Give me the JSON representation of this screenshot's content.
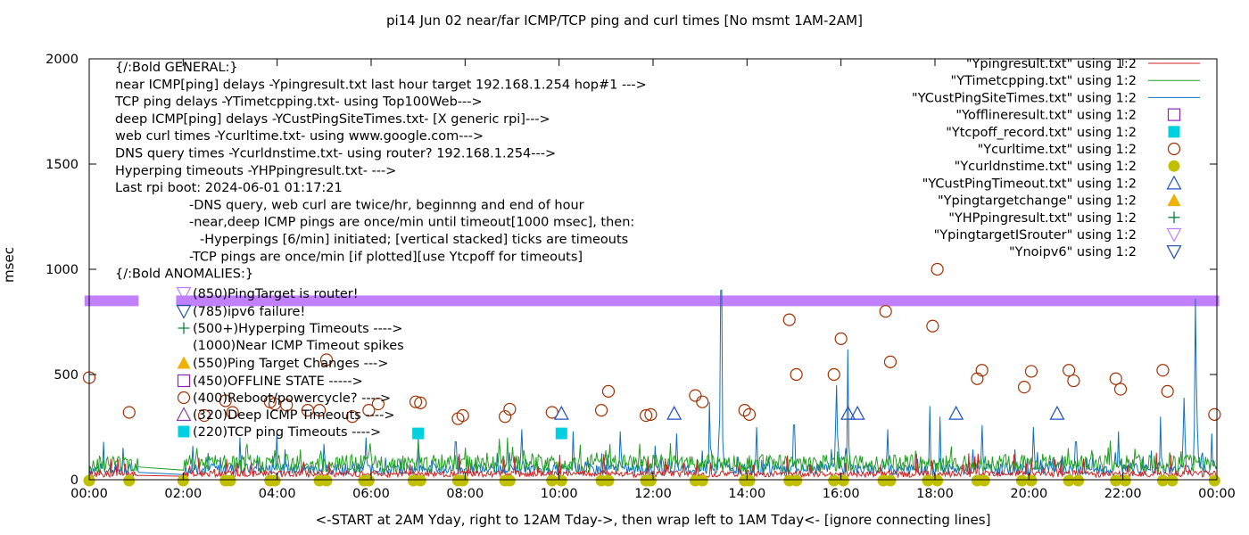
{
  "chart_data": {
    "type": "line",
    "title": "pi14 Jun 02  near/far ICMP/TCP ping and curl times [No msmt 1AM-2AM]",
    "xlabel": "<-START at 2AM Yday, right to 12AM Tday->, then wrap left to 1AM Tday<- [ignore connecting lines]",
    "ylabel": "msec",
    "xlim": [
      0,
      24
    ],
    "ylim": [
      0,
      2000
    ],
    "x_ticks": [
      {
        "value": 0,
        "label": "00:00"
      },
      {
        "value": 2,
        "label": "02:00"
      },
      {
        "value": 4,
        "label": "04:00"
      },
      {
        "value": 6,
        "label": "06:00"
      },
      {
        "value": 8,
        "label": "08:00"
      },
      {
        "value": 10,
        "label": "10:00"
      },
      {
        "value": 12,
        "label": "12:00"
      },
      {
        "value": 14,
        "label": "14:00"
      },
      {
        "value": 16,
        "label": "16:00"
      },
      {
        "value": 18,
        "label": "18:00"
      },
      {
        "value": 20,
        "label": "20:00"
      },
      {
        "value": 22,
        "label": "22:00"
      },
      {
        "value": 24,
        "label": "00:00"
      }
    ],
    "y_ticks": [
      {
        "value": 0,
        "label": "0"
      },
      {
        "value": 500,
        "label": "500"
      },
      {
        "value": 1000,
        "label": "1000"
      },
      {
        "value": 1500,
        "label": "1500"
      },
      {
        "value": 2000,
        "label": "2000"
      }
    ],
    "grid": false,
    "legend_placement": "top-right",
    "notes": [
      {
        "text": "{/:Bold GENERAL:}",
        "indent": 0
      },
      {
        "text": "near ICMP[ping] delays -Ypingresult.txt last hour target 192.168.1.254 hop#1 --->",
        "indent": 0
      },
      {
        "text": "TCP ping delays -YTimetcpping.txt- using Top100Web--->",
        "indent": 0
      },
      {
        "text": "deep ICMP[ping] delays -YCustPingSiteTimes.txt- [X generic rpi]--->",
        "indent": 0
      },
      {
        "text": "web curl times -Ycurltime.txt- using www.google.com--->",
        "indent": 0
      },
      {
        "text": "DNS query times -Ycurldnstime.txt- using router? 192.168.1.254--->",
        "indent": 0
      },
      {
        "text": "Hyperping timeouts -YHPpingresult.txt- --->",
        "indent": 0
      },
      {
        "text": "Last rpi boot: 2024-06-01 01:17:21",
        "indent": 0
      },
      {
        "text": "-DNS query, web curl are twice/hr, beginnng and end of hour",
        "indent": 1
      },
      {
        "text": "-near,deep ICMP pings are once/min until timeout[1000 msec], then:",
        "indent": 1
      },
      {
        "text": "-Hyperpings [6/min] initiated; [vertical stacked] ticks are timeouts",
        "indent": 2
      },
      {
        "text": "-TCP pings are once/min [if plotted][use Ytcpoff for timeouts]",
        "indent": 1
      },
      {
        "text": "{/:Bold ANOMALIES:}",
        "indent": 0
      }
    ],
    "anomalies": [
      {
        "label": "(850)PingTarget is router!",
        "y": 850,
        "symbol": "tri-down",
        "color": "#c080ff"
      },
      {
        "label": "(785)ipv6 failure!",
        "y": 785,
        "symbol": "tri-down",
        "color": "#2050a0"
      },
      {
        "label": "(500+)Hyperping Timeouts ---->",
        "y": 620,
        "symbol": "plus",
        "color": "#108040"
      },
      {
        "label": "(1000)Near ICMP Timeout spikes",
        "y": 560,
        "symbol": "none",
        "color": "#000000"
      },
      {
        "label": "(550)Ping Target Changes --->",
        "y": 550,
        "symbol": "tri-up-filled",
        "color": "#f0b000"
      },
      {
        "label": "(450)OFFLINE STATE ----->",
        "y": 450,
        "symbol": "square",
        "color": "#9020c0"
      },
      {
        "label": "(400)Reboot/powercycle? ---->",
        "y": 400,
        "symbol": "circle",
        "color": "#a03000"
      },
      {
        "label": "(320)Deep ICMP Timeouts ---->",
        "y": 320,
        "symbol": "tri-up",
        "color": "#8040a0"
      },
      {
        "label": "(220)TCP ping Timeouts ---->",
        "y": 220,
        "symbol": "square-filled",
        "color": "#00d0e0"
      }
    ],
    "legend": [
      {
        "label": "\"Ypingresult.txt\" using 1:2",
        "symbol": "line",
        "color": "#d02020"
      },
      {
        "label": "\"YTimetcpping.txt\" using 1:2",
        "symbol": "line",
        "color": "#20a020"
      },
      {
        "label": "\"YCustPingSiteTimes.txt\" using 1:2",
        "symbol": "line",
        "color": "#1070c0"
      },
      {
        "label": "\"Yofflineresult.txt\" using 1:2",
        "symbol": "square",
        "color": "#9020c0"
      },
      {
        "label": "\"Ytcpoff_record.txt\" using 1:2",
        "symbol": "square-filled",
        "color": "#00d0e0"
      },
      {
        "label": "\"Ycurltime.txt\" using 1:2",
        "symbol": "circle",
        "color": "#a03000"
      },
      {
        "label": "\"Ycurldnstime.txt\" using 1:2",
        "symbol": "circle-filled",
        "color": "#c0c000"
      },
      {
        "label": "\"YCustPingTimeout.txt\" using 1:2",
        "symbol": "tri-up",
        "color": "#2050c0"
      },
      {
        "label": "\"Ypingtargetchange\" using 1:2",
        "symbol": "tri-up-filled",
        "color": "#f0b000"
      },
      {
        "label": "\"YHPpingresult.txt\" using 1:2",
        "symbol": "plus",
        "color": "#108040"
      },
      {
        "label": "\"YpingtargetISrouter\" using 1:2",
        "symbol": "tri-down",
        "color": "#c080ff"
      },
      {
        "label": "\"Ynoipv6\" using 1:2",
        "symbol": "tri-down",
        "color": "#2050a0"
      }
    ],
    "series": [
      {
        "name": "\"YCustPingSiteTimes.txt\" using 1:2",
        "color": "#1070c0",
        "baseline": 45,
        "spikes": [
          [
            0.3,
            180
          ],
          [
            1.0,
            60
          ],
          [
            2.2,
            160
          ],
          [
            3.2,
            200
          ],
          [
            4.0,
            220
          ],
          [
            5.0,
            170
          ],
          [
            5.9,
            200
          ],
          [
            7.0,
            210
          ],
          [
            7.8,
            180
          ],
          [
            9.2,
            240
          ],
          [
            10.3,
            230
          ],
          [
            11.3,
            230
          ],
          [
            12.5,
            220
          ],
          [
            13.2,
            370
          ],
          [
            13.45,
            900
          ],
          [
            14.2,
            250
          ],
          [
            15.0,
            260
          ],
          [
            15.9,
            450
          ],
          [
            16.15,
            620
          ],
          [
            17.0,
            240
          ],
          [
            17.9,
            350
          ],
          [
            18.1,
            300
          ],
          [
            19.0,
            260
          ],
          [
            20.1,
            250
          ],
          [
            21.0,
            180
          ],
          [
            21.9,
            230
          ],
          [
            22.8,
            300
          ],
          [
            23.3,
            390
          ],
          [
            23.55,
            860
          ],
          [
            23.9,
            220
          ]
        ]
      },
      {
        "name": "\"YTimetcpping.txt\" using 1:2",
        "color": "#20a020",
        "baseline": 70,
        "spikes": [
          [
            2.3,
            150
          ],
          [
            4.2,
            120
          ],
          [
            8.9,
            200
          ],
          [
            11.0,
            140
          ],
          [
            15.2,
            110
          ],
          [
            19.5,
            120
          ],
          [
            21.2,
            110
          ],
          [
            23.0,
            130
          ]
        ]
      },
      {
        "name": "\"Ypingresult.txt\" using 1:2",
        "color": "#d02020",
        "baseline": 25,
        "spikes": [
          [
            5.1,
            80
          ],
          [
            12.3,
            70
          ],
          [
            18.6,
            70
          ]
        ]
      }
    ],
    "points": {
      "Ycurltime": [
        [
          0,
          485
        ],
        [
          0.85,
          320
        ],
        [
          2.45,
          305
        ],
        [
          2.9,
          375
        ],
        [
          3.05,
          320
        ],
        [
          3.85,
          370
        ],
        [
          3.95,
          360
        ],
        [
          4.2,
          355
        ],
        [
          4.65,
          330
        ],
        [
          4.9,
          330
        ],
        [
          5.05,
          570
        ],
        [
          5.6,
          300
        ],
        [
          5.95,
          330
        ],
        [
          6.15,
          360
        ],
        [
          6.95,
          370
        ],
        [
          7.05,
          365
        ],
        [
          7.85,
          290
        ],
        [
          7.95,
          305
        ],
        [
          8.85,
          300
        ],
        [
          8.95,
          335
        ],
        [
          9.85,
          320
        ],
        [
          10.9,
          330
        ],
        [
          11.05,
          420
        ],
        [
          11.85,
          305
        ],
        [
          11.95,
          310
        ],
        [
          12.9,
          400
        ],
        [
          13.05,
          370
        ],
        [
          13.95,
          330
        ],
        [
          14.05,
          310
        ],
        [
          14.9,
          760
        ],
        [
          15.05,
          500
        ],
        [
          15.85,
          500
        ],
        [
          16.0,
          670
        ],
        [
          16.95,
          800
        ],
        [
          17.05,
          560
        ],
        [
          17.95,
          730
        ],
        [
          18.05,
          1000
        ],
        [
          18.9,
          480
        ],
        [
          19.0,
          520
        ],
        [
          19.9,
          440
        ],
        [
          20.05,
          515
        ],
        [
          20.85,
          520
        ],
        [
          20.95,
          470
        ],
        [
          21.85,
          480
        ],
        [
          21.95,
          430
        ],
        [
          22.85,
          520
        ],
        [
          22.95,
          420
        ],
        [
          23.95,
          310
        ]
      ],
      "Ycurldnstime": [
        0.0,
        0.85,
        2.0,
        2.9,
        3.0,
        3.85,
        3.95,
        4.9,
        5.05,
        5.85,
        5.95,
        6.9,
        7.05,
        7.85,
        7.95,
        8.85,
        8.95,
        9.85,
        10.05,
        10.9,
        11.05,
        11.85,
        11.95,
        12.9,
        13.05,
        13.95,
        14.05,
        14.9,
        15.05,
        15.85,
        16.05,
        16.9,
        17.05,
        17.85,
        18.05,
        18.9,
        19.05,
        19.85,
        20.05,
        20.85,
        21.05,
        21.85,
        22.05,
        22.85,
        23.05,
        23.95
      ],
      "YCustPingTimeout": [
        [
          10.05,
          315
        ],
        [
          12.45,
          315
        ],
        [
          16.15,
          315
        ],
        [
          16.35,
          315
        ],
        [
          18.45,
          315
        ],
        [
          20.6,
          315
        ]
      ],
      "Ytcpoff": [
        [
          7.0,
          220
        ],
        [
          10.05,
          220
        ]
      ],
      "YpingtargetISrouter_ranges": [
        [
          -0.1,
          1.05
        ],
        [
          1.85,
          24.05
        ]
      ]
    }
  }
}
